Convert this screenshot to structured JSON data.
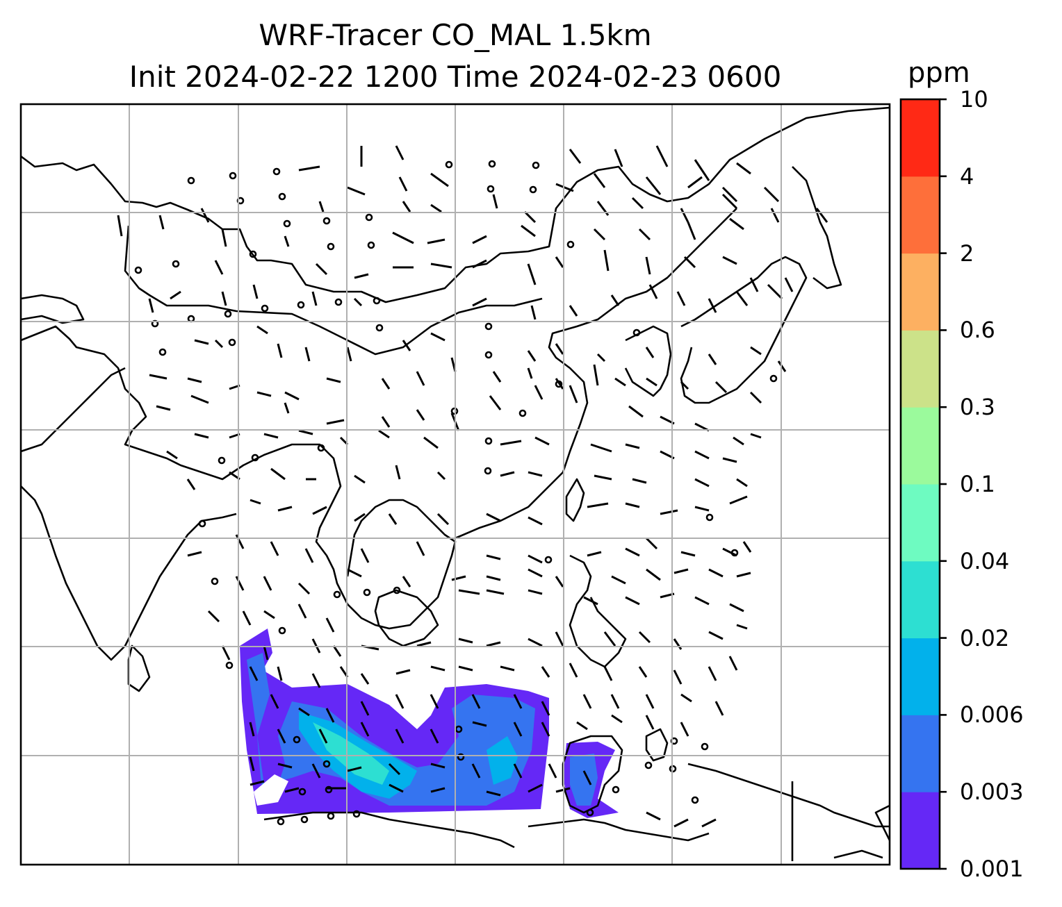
{
  "title": {
    "line1": "WRF-Tracer CO_MAL 1.5km",
    "line2": "Init 2024-02-22 1200 Time 2024-02-23 0600"
  },
  "colorbar": {
    "unit": "ppm",
    "levels": [
      "0.001",
      "0.003",
      "0.006",
      "0.02",
      "0.04",
      "0.1",
      "0.3",
      "0.6",
      "2",
      "4",
      "10"
    ],
    "colors": [
      "#6528f6",
      "#3574f0",
      "#02b1eb",
      "#2ddfd2",
      "#6efbc1",
      "#9bfa9c",
      "#cce289",
      "#fdb061",
      "#fe6f3a",
      "#ff2915"
    ]
  },
  "map": {
    "region": "Southeast Asia / East Asia",
    "gridlines": true,
    "layers": [
      "coastlines",
      "country borders",
      "tracer concentration (filled)",
      "wind barbs"
    ]
  }
}
